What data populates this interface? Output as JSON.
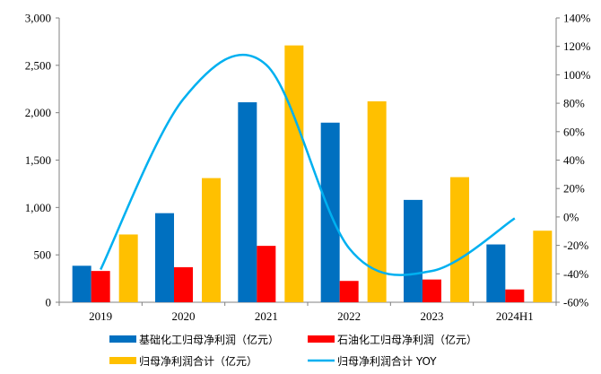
{
  "chart_data": {
    "type": "bar",
    "categories": [
      "2019",
      "2020",
      "2021",
      "2022",
      "2023",
      "2024H1"
    ],
    "series": [
      {
        "name": "基础化工归母净利润（亿元）",
        "kind": "bar",
        "axis": "left",
        "color": "#0070C0",
        "values": [
          385,
          940,
          2110,
          1895,
          1080,
          610
        ]
      },
      {
        "name": "石油化工归母净利润（亿元）",
        "kind": "bar",
        "axis": "left",
        "color": "#FF0000",
        "values": [
          330,
          370,
          595,
          225,
          240,
          135
        ]
      },
      {
        "name": "归母净利润合计（亿元）",
        "kind": "bar",
        "axis": "left",
        "color": "#FFC000",
        "values": [
          715,
          1310,
          2710,
          2120,
          1320,
          755
        ]
      },
      {
        "name": "归母净利润合计 YOY",
        "kind": "line",
        "axis": "right",
        "color": "#00B0F0",
        "values": [
          -0.37,
          0.83,
          1.07,
          -0.22,
          -0.38,
          -0.01
        ]
      }
    ],
    "y_left": {
      "min": 0,
      "max": 3000,
      "ticks": [
        "0",
        "500",
        "1,000",
        "1,500",
        "2,000",
        "2,500",
        "3,000"
      ]
    },
    "y_right": {
      "min": -0.6,
      "max": 1.4,
      "ticks": [
        "-60%",
        "-40%",
        "-20%",
        "0%",
        "20%",
        "40%",
        "60%",
        "80%",
        "100%",
        "120%",
        "140%"
      ]
    },
    "xlabel": "",
    "ylabel": "",
    "grid": false,
    "legend_position": "bottom"
  }
}
